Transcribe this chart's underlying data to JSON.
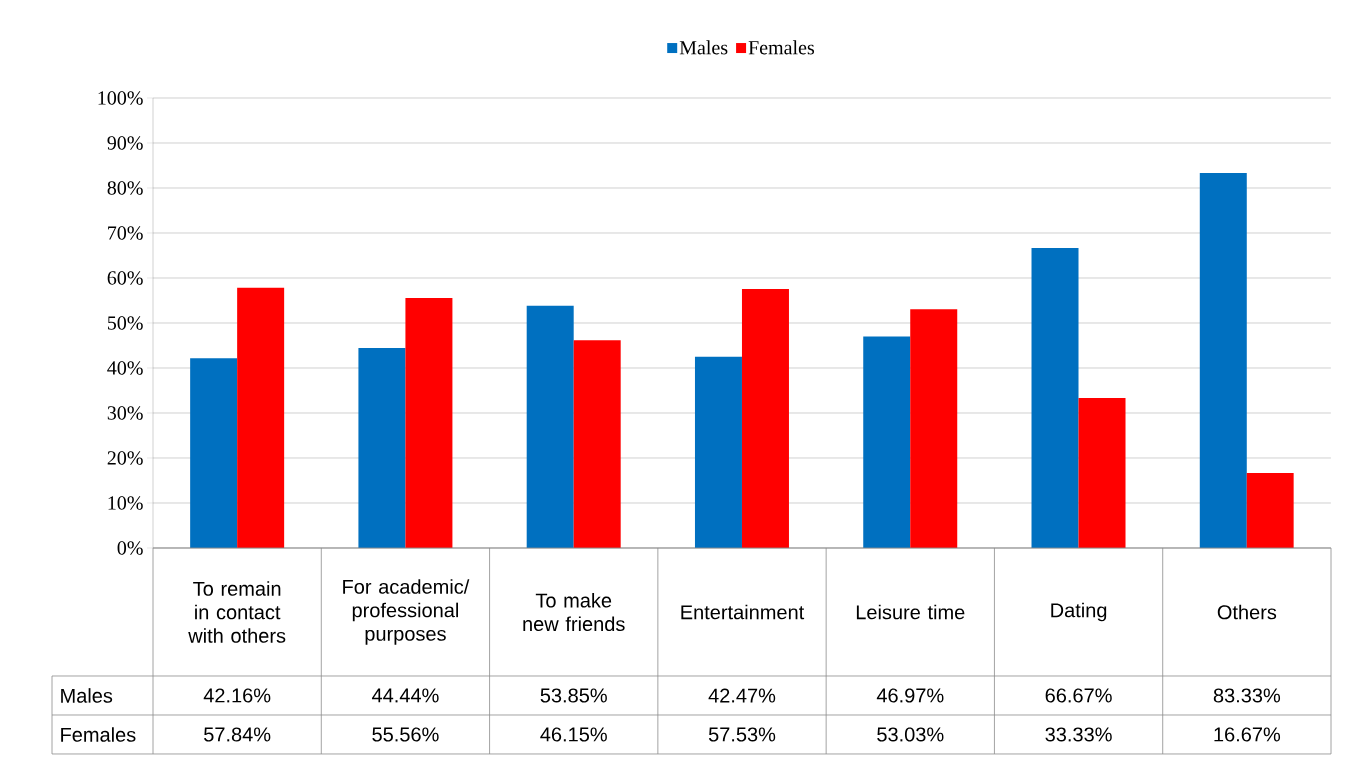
{
  "chart_data": {
    "type": "bar",
    "categories": [
      "To remain in contact with others",
      "For academic/professional purposes",
      "To make new friends",
      "Entertainment",
      "Leisure time",
      "Dating",
      "Others"
    ],
    "series": [
      {
        "name": "Males",
        "color": "#0070c0",
        "values": [
          42.16,
          44.44,
          53.85,
          42.47,
          46.97,
          66.67,
          83.33
        ],
        "value_labels": [
          "42.16%",
          "44.44%",
          "53.85%",
          "42.47%",
          "46.97%",
          "66.67%",
          "83.33%"
        ]
      },
      {
        "name": "Females",
        "color": "#ff0000",
        "values": [
          57.84,
          55.56,
          46.15,
          57.53,
          53.03,
          33.33,
          16.67
        ],
        "value_labels": [
          "57.84%",
          "55.56%",
          "46.15%",
          "57.53%",
          "53.03%",
          "33.33%",
          "16.67%"
        ]
      }
    ],
    "ylim": [
      0,
      100
    ],
    "yticks": [
      {
        "value": 0,
        "label": "0%"
      },
      {
        "value": 10,
        "label": "10%"
      },
      {
        "value": 20,
        "label": "20%"
      },
      {
        "value": 30,
        "label": "30%"
      },
      {
        "value": 40,
        "label": "40%"
      },
      {
        "value": 50,
        "label": "50%"
      },
      {
        "value": 60,
        "label": "60%"
      },
      {
        "value": 70,
        "label": "70%"
      },
      {
        "value": 80,
        "label": "80%"
      },
      {
        "value": 90,
        "label": "90%"
      },
      {
        "value": 100,
        "label": "100%"
      }
    ],
    "grid": "y",
    "legend": "top"
  }
}
